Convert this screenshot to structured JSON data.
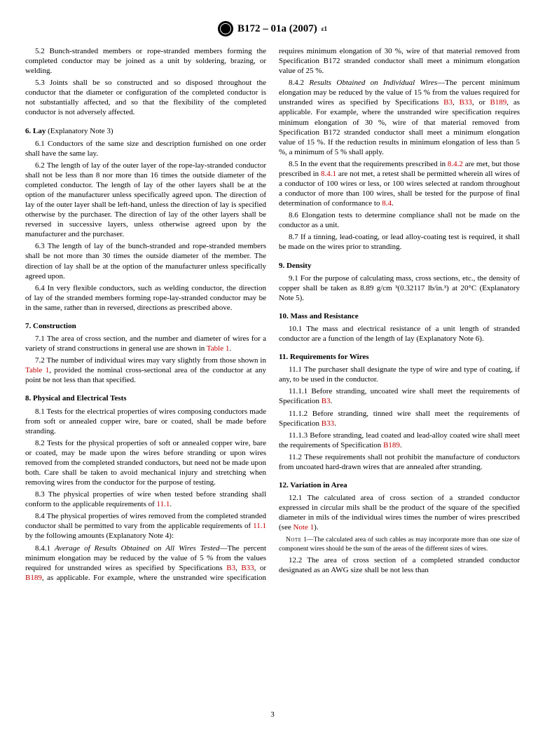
{
  "header": {
    "std": "B172 – 01a (2007)",
    "sup": "ε1"
  },
  "page": "3",
  "s52": "5.2 Bunch-stranded members or rope-stranded members forming the completed conductor may be joined as a unit by soldering, brazing, or welding.",
  "s53": "5.3 Joints shall be so constructed and so disposed throughout the conductor that the diameter or configuration of the completed conductor is not substantially affected, and so that the flexibility of the completed conductor is not adversely affected.",
  "h6": "6. Lay",
  "h6p": " (Explanatory Note 3)",
  "s61": "6.1 Conductors of the same size and description furnished on one order shall have the same lay.",
  "s62": "6.2 The length of lay of the outer layer of the rope-lay-stranded conductor shall not be less than 8 nor more than 16 times the outside diameter of the completed conductor. The length of lay of the other layers shall be at the option of the manufacturer unless specifically agreed upon. The direction of lay of the outer layer shall be left-hand, unless the direction of lay is specified otherwise by the purchaser. The direction of lay of the other layers shall be reversed in successive layers, unless otherwise agreed upon by the manufacturer and the purchaser.",
  "s63": "6.3 The length of lay of the bunch-stranded and rope-stranded members shall be not more than 30 times the outside diameter of the member. The direction of lay shall be at the option of the manufacturer unless specifically agreed upon.",
  "s64": "6.4 In very flexible conductors, such as welding conductor, the direction of lay of the stranded members forming rope-lay-stranded conductor may be in the same, rather than in reversed, directions as prescribed above.",
  "h7": "7. Construction",
  "s71a": "7.1 The area of cross section, and the number and diameter of wires for a variety of strand constructions in general use are shown in ",
  "s71r": "Table 1",
  "s71b": ".",
  "s72a": "7.2 The number of individual wires may vary slightly from those shown in ",
  "s72r": "Table 1",
  "s72b": ", provided the nominal cross-sectional area of the conductor at any point be not less than that specified.",
  "h8": "8. Physical and Electrical Tests",
  "s81": "8.1 Tests for the electrical properties of wires composing conductors made from soft or annealed copper wire, bare or coated, shall be made before stranding.",
  "s82": "8.2 Tests for the physical properties of soft or annealed copper wire, bare or coated, may be made upon the wires before stranding or upon wires removed from the completed stranded conductors, but need not be made upon both. Care shall be taken to avoid mechanical injury and stretching when removing wires from the conductor for the purpose of testing.",
  "s83a": "8.3 The physical properties of wire when tested before stranding shall conform to the applicable requirements of ",
  "s83r": "11.1",
  "s83b": ".",
  "s84a": "8.4 The physical properties of wires removed from the completed stranded conductor shall be permitted to vary from the applicable requirements of ",
  "s84r": "11.1",
  "s84b": " by the following amounts (Explanatory Note 4):",
  "s841h": "8.4.1 ",
  "s841i": "Average of Results Obtained on All Wires Tested",
  "s841a": "—The percent minimum elongation may be reduced by the value of 5 % from the values required for unstranded wires as specified by Specifications ",
  "r_b3": "B3",
  "s841c": ", ",
  "r_b33": "B33",
  "s841o": ", or ",
  "r_b189": "B189",
  "s841b": ", as applicable. For example, where the unstranded wire specification requires minimum elongation of 30 %, wire of that material removed from Specification B172 stranded conductor shall meet a minimum elongation value of 25 %.",
  "s842h": "8.4.2 ",
  "s842i": "Results Obtained on Individual Wires",
  "s842a": "—The percent minimum elongation may be reduced by the value of 15 % from the values required for unstranded wires as specified by Specifications ",
  "s842b": ", as applicable. For example, where the unstranded wire specification requires minimum elongation of 30 %, wire of that material removed from Specification B172 stranded conductor shall meet a minimum elongation value of 15 %. If the reduction results in minimum elongation of less than 5 %, a minimum of 5 % shall apply.",
  "s85a": "8.5 In the event that the requirements prescribed in ",
  "s85r1": "8.4.2",
  "s85m": " are met, but those prescribed in ",
  "s85r2": "8.4.1",
  "s85b": " are not met, a retest shall be permitted wherein all wires of a conductor of 100 wires or less, or 100 wires selected at random throughout a conductor of more than 100 wires, shall be tested for the purpose of final determination of conformance to ",
  "s85r3": "8.4",
  "s85e": ".",
  "s86": "8.6 Elongation tests to determine compliance shall not be made on the conductor as a unit.",
  "s87": "8.7 If a tinning, lead-coating, or lead alloy-coating test is required, it shall be made on the wires prior to stranding.",
  "h9": "9. Density",
  "s91": "9.1 For the purpose of calculating mass, cross sections, etc., the density of copper shall be taken as 8.89 g/cm ³(0.32117 lb/in.³) at 20°C (Explanatory Note 5).",
  "h10": "10. Mass and Resistance",
  "s101": "10.1 The mass and electrical resistance of a unit length of stranded conductor are a function of the length of lay (Explanatory Note 6).",
  "h11": "11. Requirements for Wires",
  "s111": "11.1 The purchaser shall designate the type of wire and type of coating, if any, to be used in the conductor.",
  "s1111a": "11.1.1 Before stranding, uncoated wire shall meet the requirements of Specification ",
  "s1111b": ".",
  "s1112a": "11.1.2 Before stranding, tinned wire shall meet the requirements of Specification ",
  "s1112b": ".",
  "s1113a": "11.1.3 Before stranding, lead coated and lead-alloy coated wire shall meet the requirements of Specification ",
  "s1113b": ".",
  "s112": "11.2 These requirements shall not prohibit the manufacture of conductors from uncoated hard-drawn wires that are annealed after stranding.",
  "h12": "12. Variation in Area",
  "s121a": "12.1 The calculated area of cross section of a stranded conductor expressed in circular mils shall be the product of the square of the specified diameter in mils of the individual wires times the number of wires prescribed (see ",
  "s121r": "Note 1",
  "s121b": ").",
  "note1l": "Note",
  "note1n": " 1—",
  "note1t": "The calculated area of such cables as may incorporate more than one size of component wires should be the sum of the areas of the different sizes of wires.",
  "s122": "12.2 The area of cross section of a completed stranded conductor designated as an AWG size shall be not less than"
}
